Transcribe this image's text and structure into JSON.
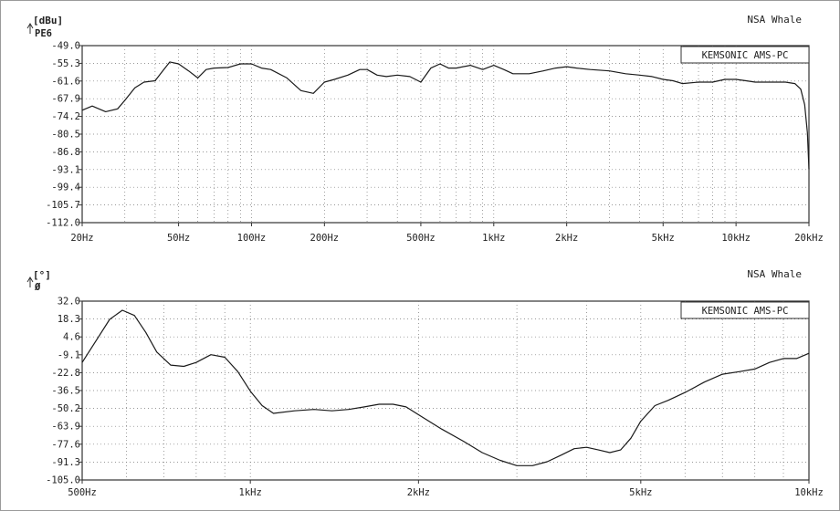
{
  "chart_data": [
    {
      "type": "line",
      "title": "NSA Whale",
      "ylabel": "[dBu]",
      "trace_label": "PE6",
      "legend": "KEMSONIC AMS-PC",
      "x_scale": "log",
      "xlim": [
        20,
        20000
      ],
      "ylim": [
        -112.0,
        -49.0
      ],
      "y_ticks": [
        "-49.0",
        "-55.3",
        "-61.6",
        "-67.9",
        "-74.2",
        "-80.5",
        "-86.8",
        "-93.1",
        "-99.4",
        "-105.7",
        "-112.0"
      ],
      "x_ticks": [
        {
          "value": 20,
          "label": "20Hz"
        },
        {
          "value": 50,
          "label": "50Hz"
        },
        {
          "value": 100,
          "label": "100Hz"
        },
        {
          "value": 200,
          "label": "200Hz"
        },
        {
          "value": 500,
          "label": "500Hz"
        },
        {
          "value": 1000,
          "label": "1kHz"
        },
        {
          "value": 2000,
          "label": "2kHz"
        },
        {
          "value": 5000,
          "label": "5kHz"
        },
        {
          "value": 10000,
          "label": "10kHz"
        },
        {
          "value": 20000,
          "label": "20kHz"
        }
      ],
      "grid": true,
      "legend_position": "top-right",
      "series": [
        {
          "x": [
            20,
            22,
            25,
            28,
            30,
            33,
            36,
            40,
            43,
            46,
            50,
            55,
            60,
            65,
            70,
            80,
            90,
            100,
            110,
            120,
            140,
            160,
            180,
            200,
            220,
            250,
            280,
            300,
            330,
            360,
            400,
            450,
            500,
            550,
            600,
            650,
            700,
            800,
            900,
            1000,
            1100,
            1200,
            1400,
            1600,
            1800,
            2000,
            2200,
            2500,
            3000,
            3500,
            4000,
            4500,
            5000,
            5500,
            6000,
            7000,
            8000,
            9000,
            10000,
            11000,
            12000,
            14000,
            16000,
            17500,
            18500,
            19200,
            19700,
            20000
          ],
          "y": [
            -72.0,
            -70.5,
            -72.5,
            -71.5,
            -68.5,
            -64.0,
            -62.0,
            -61.5,
            -58.0,
            -54.8,
            -55.5,
            -58.0,
            -60.5,
            -57.5,
            -57.0,
            -56.8,
            -55.5,
            -55.5,
            -57.0,
            -57.5,
            -60.5,
            -65.0,
            -66.0,
            -62.0,
            -61.0,
            -59.5,
            -57.5,
            -57.5,
            -59.5,
            -60.0,
            -59.5,
            -60.0,
            -62.0,
            -57.0,
            -55.5,
            -57.0,
            -57.0,
            -56.0,
            -57.5,
            -56.0,
            -57.5,
            -59.0,
            -59.0,
            -58.0,
            -57.0,
            -56.5,
            -57.0,
            -57.5,
            -58.0,
            -59.0,
            -59.5,
            -60.0,
            -61.0,
            -61.5,
            -62.5,
            -62.0,
            -62.0,
            -61.0,
            -61.0,
            -61.5,
            -62.0,
            -62.0,
            -62.0,
            -62.5,
            -64.5,
            -70.0,
            -80.0,
            -93.0
          ]
        }
      ]
    },
    {
      "type": "line",
      "title": "NSA Whale",
      "ylabel": "[°]",
      "trace_label": "Ø",
      "legend": "KEMSONIC AMS-PC",
      "x_scale": "log",
      "xlim": [
        500,
        10000
      ],
      "ylim": [
        -105.0,
        32.0
      ],
      "y_ticks": [
        "32.0",
        "18.3",
        "4.6",
        "-9.1",
        "-22.8",
        "-36.5",
        "-50.2",
        "-63.9",
        "-77.6",
        "-91.3",
        "-105.0"
      ],
      "x_ticks": [
        {
          "value": 500,
          "label": "500Hz"
        },
        {
          "value": 1000,
          "label": "1kHz"
        },
        {
          "value": 2000,
          "label": "2kHz"
        },
        {
          "value": 5000,
          "label": "5kHz"
        },
        {
          "value": 10000,
          "label": "10kHz"
        }
      ],
      "grid": true,
      "legend_position": "top-right",
      "series": [
        {
          "x": [
            500,
            530,
            560,
            590,
            620,
            650,
            680,
            720,
            760,
            800,
            850,
            900,
            950,
            1000,
            1050,
            1100,
            1200,
            1300,
            1400,
            1500,
            1600,
            1700,
            1800,
            1900,
            2000,
            2200,
            2400,
            2600,
            2800,
            3000,
            3200,
            3400,
            3600,
            3800,
            4000,
            4200,
            4400,
            4600,
            4800,
            5000,
            5300,
            5600,
            6000,
            6500,
            7000,
            7500,
            8000,
            8500,
            9000,
            9500,
            10000
          ],
          "y": [
            -15.0,
            2.0,
            18.0,
            25.0,
            21.0,
            8.0,
            -7.0,
            -17.0,
            -18.0,
            -15.0,
            -9.0,
            -11.0,
            -22.0,
            -37.0,
            -48.0,
            -54.0,
            -52.0,
            -51.0,
            -52.0,
            -51.0,
            -49.0,
            -47.0,
            -47.0,
            -49.0,
            -55.0,
            -66.0,
            -75.0,
            -84.0,
            -90.0,
            -94.0,
            -94.0,
            -91.0,
            -86.0,
            -81.0,
            -80.0,
            -82.0,
            -84.0,
            -82.0,
            -73.0,
            -60.0,
            -48.0,
            -44.0,
            -38.0,
            -30.0,
            -24.0,
            -22.0,
            -20.0,
            -15.0,
            -12.0,
            -12.0,
            -8.0
          ]
        }
      ]
    }
  ]
}
